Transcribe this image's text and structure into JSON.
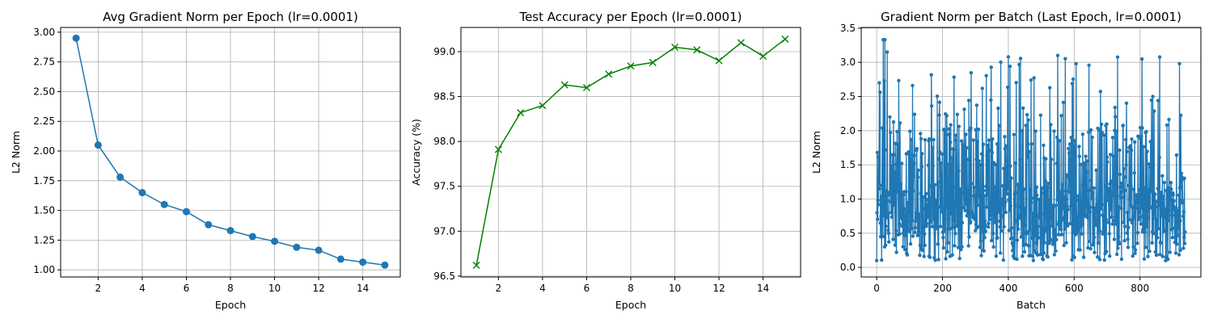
{
  "chart_data": [
    {
      "type": "line",
      "title": "Avg Gradient Norm per Epoch (lr=0.0001)",
      "xlabel": "Epoch",
      "ylabel": "L2 Norm",
      "xlim": [
        0.3,
        15.7
      ],
      "ylim": [
        0.94,
        3.04
      ],
      "xticks": [
        2,
        4,
        6,
        8,
        10,
        12,
        14
      ],
      "yticks": [
        1.0,
        1.25,
        1.5,
        1.75,
        2.0,
        2.25,
        2.5,
        2.75,
        3.0
      ],
      "ytick_labels": [
        "1.00",
        "1.25",
        "1.50",
        "1.75",
        "2.00",
        "2.25",
        "2.50",
        "2.75",
        "3.00"
      ],
      "grid": true,
      "color": "#1f77b4",
      "marker": "o",
      "x": [
        1,
        2,
        3,
        4,
        5,
        6,
        7,
        8,
        9,
        10,
        11,
        12,
        13,
        14,
        15
      ],
      "values": [
        2.95,
        2.05,
        1.78,
        1.65,
        1.55,
        1.49,
        1.38,
        1.33,
        1.28,
        1.24,
        1.19,
        1.165,
        1.09,
        1.065,
        1.04
      ]
    },
    {
      "type": "line",
      "title": "Test Accuracy per Epoch (lr=0.0001)",
      "xlabel": "Epoch",
      "ylabel": "Accuracy (%)",
      "xlim": [
        0.3,
        15.7
      ],
      "ylim": [
        96.49,
        99.27
      ],
      "xticks": [
        2,
        4,
        6,
        8,
        10,
        12,
        14
      ],
      "yticks": [
        96.5,
        97.0,
        97.5,
        98.0,
        98.5,
        99.0
      ],
      "ytick_labels": [
        "96.5",
        "97.0",
        "97.5",
        "98.0",
        "98.5",
        "99.0"
      ],
      "grid": true,
      "color": "#008000",
      "marker": "x",
      "x": [
        1,
        2,
        3,
        4,
        5,
        6,
        7,
        8,
        9,
        10,
        11,
        12,
        13,
        14,
        15
      ],
      "values": [
        96.62,
        97.91,
        98.32,
        98.4,
        98.63,
        98.6,
        98.75,
        98.84,
        98.88,
        99.05,
        99.02,
        98.9,
        99.1,
        98.95,
        99.14
      ]
    },
    {
      "type": "line",
      "title": "Gradient Norm per Batch (Last Epoch, lr=0.0001)",
      "xlabel": "Batch",
      "ylabel": "L2 Norm",
      "xlim": [
        -47,
        985
      ],
      "ylim": [
        -0.14,
        3.51
      ],
      "xticks": [
        0,
        200,
        400,
        600,
        800
      ],
      "yticks": [
        0.0,
        0.5,
        1.0,
        1.5,
        2.0,
        2.5,
        3.0,
        3.5
      ],
      "ytick_labels": [
        "0.0",
        "0.5",
        "1.0",
        "1.5",
        "2.0",
        "2.5",
        "3.0",
        "3.5"
      ],
      "grid": true,
      "color": "#1f77b4",
      "marker": "o",
      "n_batches": 938,
      "values_sample": [
        0.1,
        0.98,
        2.7,
        0.45,
        1.2,
        3.33,
        0.3,
        0.6,
        3.15,
        0.5,
        2.2,
        0.8
      ]
    }
  ]
}
